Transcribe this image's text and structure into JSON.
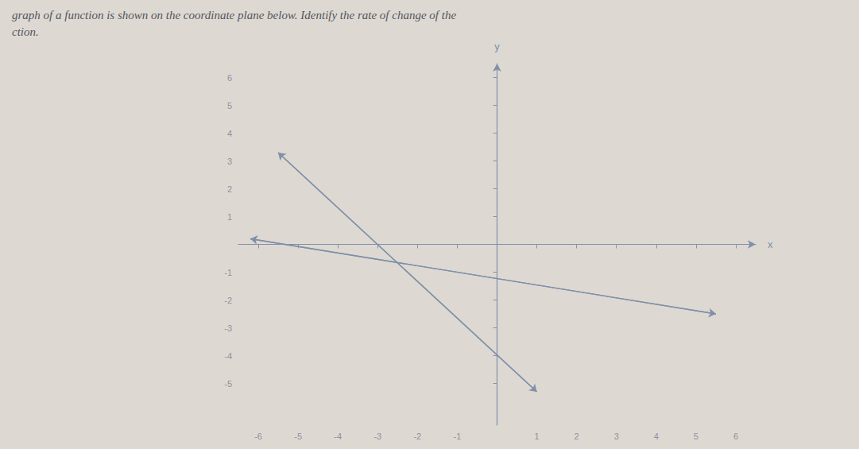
{
  "chart_data": {
    "type": "line",
    "title": "graph of a function is shown on the coordinate plane below. Identify the rate of change of the",
    "subtitle": "ction.",
    "xlabel": "x",
    "ylabel": "y",
    "xlim": [
      -6.5,
      6.5
    ],
    "ylim": [
      -6.5,
      6.5
    ],
    "xticks": [
      -6,
      -5,
      -4,
      -3,
      -2,
      -1,
      1,
      2,
      3,
      4,
      5,
      6
    ],
    "yticks": [
      -5,
      -4,
      -3,
      -2,
      -1,
      1,
      2,
      3,
      4,
      5,
      6
    ],
    "grid": false,
    "series": [
      {
        "x": [
          -5.5,
          1.0
        ],
        "values": [
          3.3,
          -5.3
        ],
        "color": "#8090a8"
      },
      {
        "x": [
          -6.2,
          5.5
        ],
        "values": [
          0.2,
          -2.5
        ],
        "color": "#8090a8"
      }
    ]
  }
}
